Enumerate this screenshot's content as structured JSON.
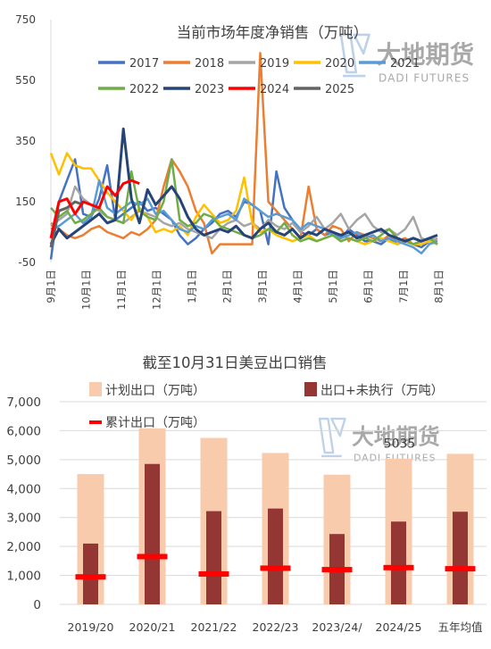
{
  "logo": {
    "name": "大地期货",
    "sub": "DADI FUTURES"
  },
  "colors": {
    "2017": "#4472C4",
    "2018": "#ED7D31",
    "2019": "#A5A5A5",
    "2020": "#FFC000",
    "2021": "#5B9BD5",
    "2022": "#70AD47",
    "2023": "#264478",
    "2024": "#FF0000",
    "2025": "#636363",
    "plan": "#F8CBAD",
    "export": "#943634",
    "cum": "#FF0000",
    "grid": "#D9D9D9",
    "logo": "#6E9BD0"
  },
  "chart_data": [
    {
      "type": "line",
      "title": "当前市场年度净销售（万吨）",
      "ylim": [
        -50,
        750
      ],
      "yticks": [
        -50,
        150,
        350,
        550,
        750
      ],
      "xtick_labels": [
        "9月1日",
        "10月1日",
        "11月1日",
        "12月1日",
        "1月1日",
        "2月1日",
        "3月1日",
        "4月1日",
        "5月1日",
        "6月1日",
        "7月1日",
        "8月1日"
      ],
      "x_unit": "week_index",
      "series": [
        {
          "name": "2017",
          "values": [
            -40,
            150,
            220,
            290,
            110,
            100,
            160,
            270,
            90,
            110,
            130,
            150,
            120,
            130,
            110,
            90,
            40,
            10,
            30,
            60,
            80,
            110,
            120,
            100,
            150,
            140,
            120,
            10,
            250,
            130,
            90,
            50,
            40,
            60,
            40,
            50,
            30,
            60,
            40,
            20,
            20,
            10,
            30,
            10,
            20,
            10,
            0,
            20,
            10
          ]
        },
        {
          "name": "2018",
          "values": [
            80,
            60,
            40,
            30,
            40,
            60,
            70,
            50,
            40,
            30,
            50,
            40,
            60,
            90,
            200,
            290,
            250,
            200,
            120,
            80,
            -20,
            10,
            10,
            10,
            10,
            10,
            640,
            150,
            120,
            90,
            60,
            30,
            200,
            60,
            40,
            70,
            60,
            20,
            50,
            40,
            30,
            20,
            40,
            20,
            30,
            10,
            20,
            30,
            20
          ]
        },
        {
          "name": "2019",
          "values": [
            70,
            90,
            110,
            200,
            160,
            140,
            120,
            100,
            90,
            80,
            100,
            120,
            110,
            100,
            80,
            70,
            80,
            60,
            50,
            40,
            30,
            60,
            80,
            90,
            70,
            80,
            60,
            90,
            70,
            60,
            80,
            50,
            70,
            100,
            60,
            80,
            110,
            60,
            90,
            110,
            70,
            50,
            60,
            40,
            60,
            100,
            30,
            20,
            30
          ]
        },
        {
          "name": "2020",
          "values": [
            310,
            240,
            310,
            270,
            260,
            260,
            220,
            180,
            150,
            120,
            90,
            130,
            100,
            50,
            60,
            50,
            70,
            40,
            100,
            140,
            110,
            80,
            90,
            120,
            230,
            80,
            50,
            60,
            40,
            30,
            20,
            30,
            40,
            20,
            30,
            40,
            20,
            30,
            20,
            10,
            20,
            30,
            20,
            10,
            20,
            10,
            10,
            20,
            10
          ]
        },
        {
          "name": "2021",
          "values": [
            60,
            70,
            90,
            110,
            80,
            100,
            220,
            130,
            110,
            130,
            150,
            140,
            160,
            110,
            120,
            90,
            60,
            50,
            70,
            60,
            90,
            100,
            110,
            90,
            160,
            140,
            120,
            100,
            110,
            100,
            90,
            60,
            80,
            70,
            60,
            40,
            30,
            40,
            50,
            30,
            40,
            20,
            30,
            20,
            10,
            0,
            -20,
            10,
            20
          ]
        },
        {
          "name": "2022",
          "values": [
            130,
            100,
            120,
            80,
            90,
            110,
            130,
            100,
            90,
            80,
            250,
            120,
            100,
            90,
            150,
            290,
            90,
            70,
            80,
            110,
            100,
            70,
            60,
            50,
            40,
            30,
            40,
            60,
            50,
            80,
            40,
            20,
            30,
            20,
            30,
            40,
            20,
            30,
            20,
            30,
            20,
            40,
            60,
            30,
            20,
            10,
            20,
            30,
            10
          ]
        },
        {
          "name": "2023",
          "values": [
            10,
            60,
            30,
            50,
            70,
            90,
            110,
            80,
            90,
            390,
            160,
            80,
            190,
            140,
            170,
            200,
            160,
            100,
            60,
            40,
            50,
            60,
            50,
            70,
            40,
            30,
            60,
            80,
            50,
            40,
            60,
            30,
            50,
            40,
            60,
            50,
            40,
            50,
            30,
            40,
            50,
            60,
            40,
            30,
            20,
            30,
            20,
            30,
            40
          ]
        },
        {
          "name": "2024",
          "values": [
            30,
            150,
            160,
            110,
            150,
            140,
            130,
            200,
            170,
            210,
            220,
            210
          ]
        },
        {
          "name": "2025",
          "values": [
            0,
            120,
            130,
            150,
            140
          ]
        }
      ]
    },
    {
      "type": "bar",
      "title": "截至10月31日美豆出口销售",
      "categories": [
        "2019/20",
        "2020/21",
        "2021/22",
        "2022/23",
        "2023/24/",
        "2024/25",
        "五年均值"
      ],
      "ylim": [
        0,
        7000
      ],
      "yticks": [
        "0",
        "1,000",
        "2,000",
        "3,000",
        "4,000",
        "5,000",
        "6,000",
        "7,000"
      ],
      "series": [
        {
          "name": "计划出口（万吨）",
          "values": [
            4500,
            6080,
            5750,
            5230,
            4480,
            5035,
            5200
          ]
        },
        {
          "name": "出口+未执行（万吨）",
          "values": [
            2100,
            4850,
            3220,
            3310,
            2430,
            2860,
            3200
          ]
        },
        {
          "name": "累计出口（万吨）",
          "values": [
            950,
            1650,
            1050,
            1250,
            1200,
            1270,
            1230
          ]
        }
      ],
      "data_labels": [
        {
          "category": "2024/25",
          "text": "5035"
        }
      ]
    }
  ]
}
